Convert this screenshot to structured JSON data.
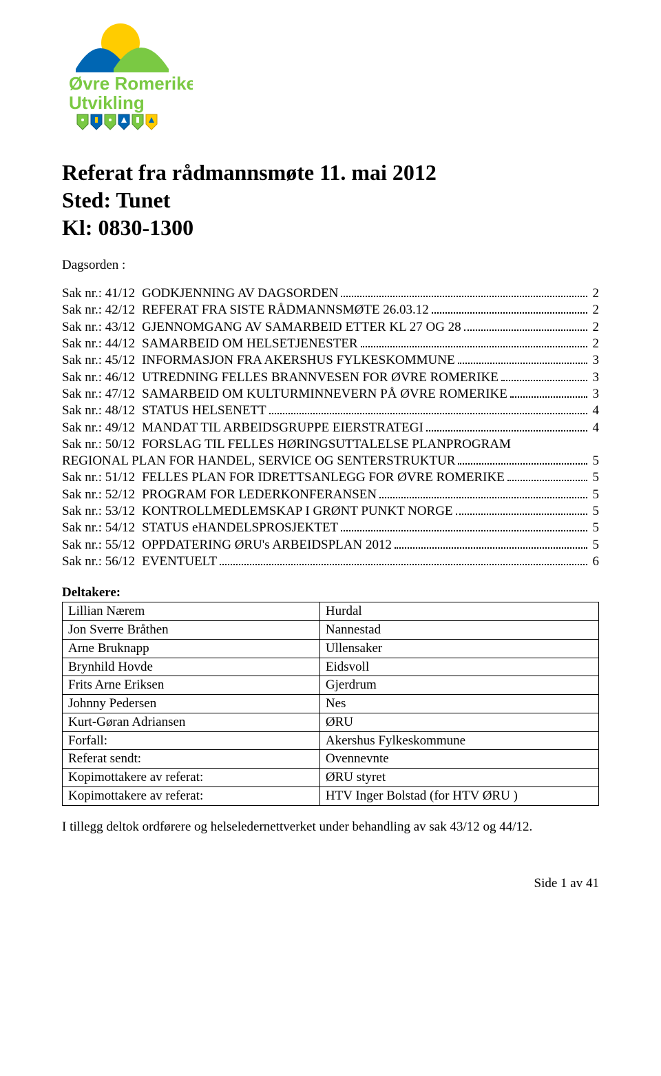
{
  "logo": {
    "line1": "Øvre Romerike",
    "line2": "Utvikling",
    "text_color": "#7ac943",
    "shield_colors": [
      "#7ac943",
      "#0066b3",
      "#7ac943",
      "#0066b3",
      "#7ac943",
      "#ffcc00"
    ],
    "sun_color": "#ffcc00",
    "hill_left": "#0066b3",
    "hill_right": "#7ac943"
  },
  "title": {
    "line1": "Referat fra rådmannsmøte 11. mai 2012",
    "line2": "Sted: Tunet",
    "line3": "Kl: 0830-1300"
  },
  "dagsorden_label": "Dagsorden :",
  "toc": [
    {
      "sak": "Sak nr.: 41/12",
      "title": "GODKJENNING AV DAGSORDEN",
      "page": "2"
    },
    {
      "sak": "Sak nr.: 42/12",
      "title": "REFERAT FRA SISTE RÅDMANNSMØTE 26.03.12",
      "page": "2"
    },
    {
      "sak": "Sak nr.: 43/12",
      "title": "GJENNOMGANG AV SAMARBEID ETTER KL 27 OG 28",
      "page": "2"
    },
    {
      "sak": "Sak nr.: 44/12",
      "title": "SAMARBEID OM HELSETJENESTER",
      "page": "2"
    },
    {
      "sak": "Sak nr.: 45/12",
      "title": "INFORMASJON FRA AKERSHUS FYLKESKOMMUNE",
      "page": "3"
    },
    {
      "sak": "Sak nr.: 46/12",
      "title": "UTREDNING FELLES BRANNVESEN FOR ØVRE ROMERIKE",
      "page": "3"
    },
    {
      "sak": "Sak nr.: 47/12",
      "title": "SAMARBEID OM KULTURMINNEVERN PÅ ØVRE ROMERIKE",
      "page": "3"
    },
    {
      "sak": "Sak nr.: 48/12",
      "title": "STATUS HELSENETT",
      "page": "4"
    },
    {
      "sak": "Sak nr.: 49/12",
      "title": "MANDAT TIL ARBEIDSGRUPPE EIERSTRATEGI",
      "page": "4"
    },
    {
      "sak": "Sak nr.: 50/12",
      "title": "FORSLAG TIL FELLES HØRINGSUTTALELSE PLANPROGRAM",
      "cont": "REGIONAL PLAN FOR HANDEL, SERVICE OG SENTERSTRUKTUR",
      "page": "5"
    },
    {
      "sak": "Sak nr.: 51/12",
      "title": "FELLES PLAN FOR IDRETTSANLEGG FOR ØVRE ROMERIKE",
      "page": "5"
    },
    {
      "sak": "Sak nr.: 52/12",
      "title": "PROGRAM FOR LEDERKONFERANSEN",
      "page": "5"
    },
    {
      "sak": "Sak nr.: 53/12",
      "title": "KONTROLLMEDLEMSKAP I GRØNT PUNKT NORGE",
      "page": "5"
    },
    {
      "sak": "Sak nr.: 54/12",
      "title": "STATUS eHANDELSPROSJEKTET",
      "page": "5"
    },
    {
      "sak": "Sak nr.: 55/12",
      "title": "OPPDATERING ØRU's ARBEIDSPLAN 2012",
      "page": "5"
    },
    {
      "sak": "Sak nr.: 56/12",
      "title": "EVENTUELT",
      "page": "6"
    }
  ],
  "deltakere_label": "Deltakere:",
  "deltakere": [
    {
      "left": "Lillian Nærem",
      "right": "Hurdal"
    },
    {
      "left": "Jon Sverre Bråthen",
      "right": "Nannestad"
    },
    {
      "left": "Arne Bruknapp",
      "right": "Ullensaker"
    },
    {
      "left": "Brynhild Hovde",
      "right": "Eidsvoll"
    },
    {
      "left": "Frits Arne Eriksen",
      "right": "Gjerdrum"
    },
    {
      "left": "Johnny Pedersen",
      "right": "Nes"
    },
    {
      "left": "Kurt-Gøran Adriansen",
      "right": "ØRU"
    },
    {
      "left": "Forfall:",
      "right": "Akershus Fylkeskommune"
    },
    {
      "left": "Referat sendt:",
      "right": "Ovennevnte"
    },
    {
      "left": "Kopimottakere av referat:",
      "right": "ØRU styret"
    },
    {
      "left": "Kopimottakere av referat:",
      "right": "HTV Inger Bolstad  (for HTV ØRU )"
    }
  ],
  "closing": "I tillegg deltok ordførere og helseledernettverket under behandling av sak 43/12 og 44/12.",
  "footer": "Side 1 av 41"
}
